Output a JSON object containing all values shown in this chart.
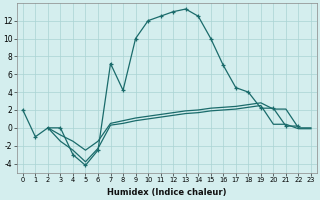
{
  "xlabel": "Humidex (Indice chaleur)",
  "x": [
    0,
    1,
    2,
    3,
    4,
    5,
    6,
    7,
    8,
    9,
    10,
    11,
    12,
    13,
    14,
    15,
    16,
    17,
    18,
    19,
    20,
    21,
    22,
    23
  ],
  "line1_x": [
    0,
    1,
    2,
    3,
    4,
    5,
    6,
    7,
    8,
    9,
    10,
    11,
    12,
    13,
    14,
    15,
    16,
    17,
    18,
    19,
    20,
    21,
    22
  ],
  "line1_y": [
    2,
    -1,
    0,
    0,
    -3,
    -4.2,
    -2.5,
    7.2,
    4.2,
    10,
    12,
    12.5,
    13.0,
    13.3,
    12.5,
    10,
    7,
    4.5,
    4.0,
    2.2,
    2.2,
    0.2,
    0.2
  ],
  "line2_x": [
    2,
    3,
    4,
    5,
    6,
    7,
    8,
    9,
    10,
    11,
    12,
    13,
    14,
    15,
    16,
    17,
    18,
    19,
    20,
    21,
    22,
    23
  ],
  "line2_y": [
    0,
    -1.5,
    -2.5,
    -3.8,
    -2.3,
    0.3,
    0.5,
    0.8,
    1.0,
    1.2,
    1.4,
    1.6,
    1.7,
    1.9,
    2.0,
    2.1,
    2.3,
    2.5,
    0.4,
    0.4,
    -0.1,
    -0.1
  ],
  "line3_x": [
    2,
    3,
    4,
    5,
    6,
    7,
    8,
    9,
    10,
    11,
    12,
    13,
    14,
    15,
    16,
    17,
    18,
    19,
    20,
    21,
    22,
    23
  ],
  "line3_y": [
    0,
    -0.8,
    -1.5,
    -2.5,
    -1.5,
    0.5,
    0.8,
    1.1,
    1.3,
    1.5,
    1.7,
    1.9,
    2.0,
    2.2,
    2.3,
    2.4,
    2.6,
    2.8,
    2.1,
    2.1,
    0.0,
    0.0
  ],
  "color": "#1a6b6b",
  "bg_color": "#d4eeee",
  "grid_color": "#aad4d4",
  "ylim": [
    -5,
    14
  ],
  "xlim": [
    -0.5,
    23.5
  ],
  "yticks": [
    -4,
    -2,
    0,
    2,
    4,
    6,
    8,
    10,
    12
  ],
  "xticks": [
    0,
    1,
    2,
    3,
    4,
    5,
    6,
    7,
    8,
    9,
    10,
    11,
    12,
    13,
    14,
    15,
    16,
    17,
    18,
    19,
    20,
    21,
    22,
    23
  ]
}
